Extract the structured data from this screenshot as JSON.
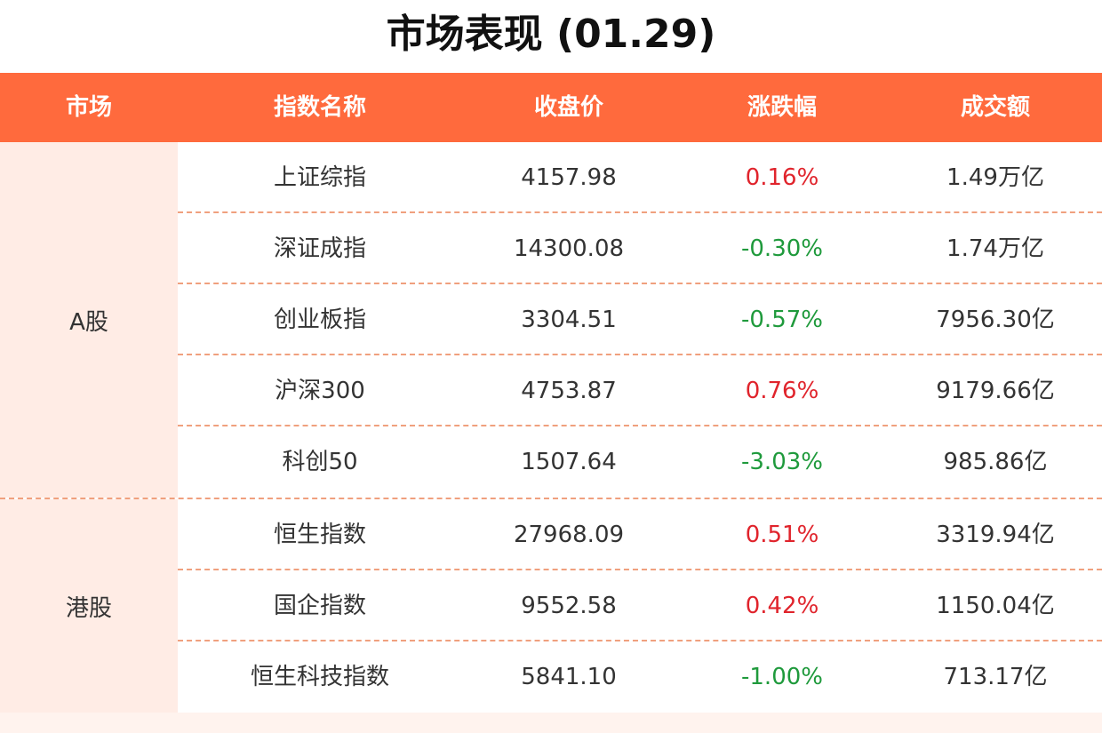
{
  "title": "市场表现 (01.29)",
  "colors": {
    "header_bg": "#ff6a3d",
    "market_bg": "#ffece5",
    "up": "#e0242c",
    "down": "#1f9a3c",
    "divider": "#f0a07e"
  },
  "columns": [
    "市场",
    "指数名称",
    "收盘价",
    "涨跌幅",
    "成交额"
  ],
  "groups": [
    {
      "market": "A股",
      "rows": [
        {
          "name": "上证综指",
          "close": "4157.98",
          "change": "0.16%",
          "dir": "up",
          "turnover": "1.49万亿"
        },
        {
          "name": "深证成指",
          "close": "14300.08",
          "change": "-0.30%",
          "dir": "down",
          "turnover": "1.74万亿"
        },
        {
          "name": "创业板指",
          "close": "3304.51",
          "change": "-0.57%",
          "dir": "down",
          "turnover": "7956.30亿"
        },
        {
          "name": "沪深300",
          "close": "4753.87",
          "change": "0.76%",
          "dir": "up",
          "turnover": "9179.66亿"
        },
        {
          "name": "科创50",
          "close": "1507.64",
          "change": "-3.03%",
          "dir": "down",
          "turnover": "985.86亿"
        }
      ]
    },
    {
      "market": "港股",
      "rows": [
        {
          "name": "恒生指数",
          "close": "27968.09",
          "change": "0.51%",
          "dir": "up",
          "turnover": "3319.94亿"
        },
        {
          "name": "国企指数",
          "close": "9552.58",
          "change": "0.42%",
          "dir": "up",
          "turnover": "1150.04亿"
        },
        {
          "name": "恒生科技指数",
          "close": "5841.10",
          "change": "-1.00%",
          "dir": "down",
          "turnover": "713.17亿"
        }
      ]
    }
  ]
}
